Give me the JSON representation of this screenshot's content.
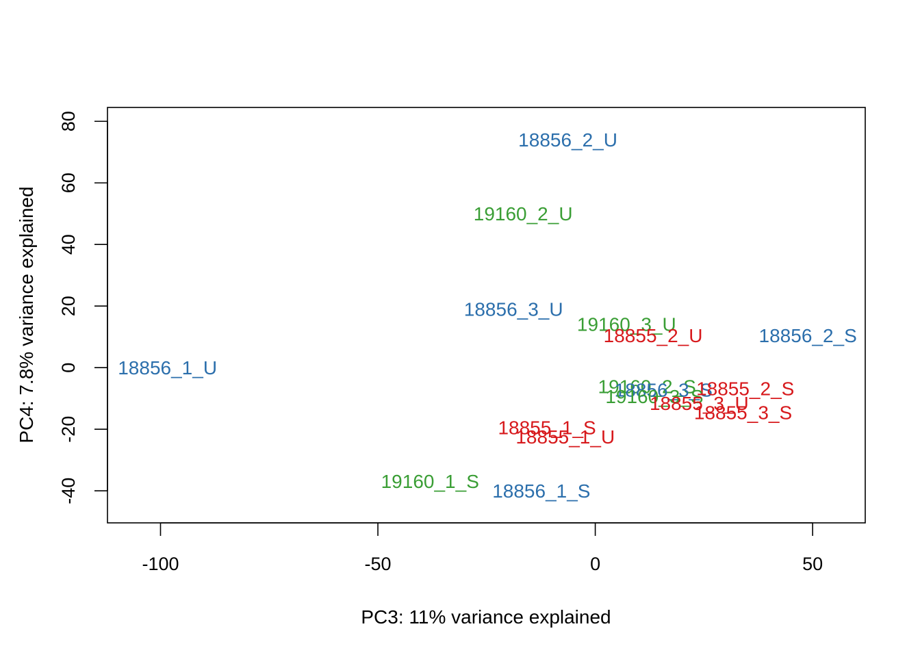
{
  "chart_data": {
    "type": "scatter",
    "title": "",
    "xlabel": "PC3: 11% variance explained",
    "ylabel": "PC4: 7.8% variance explained",
    "xlim": [
      -112.2,
      62.1
    ],
    "ylim": [
      -50.4,
      84.5
    ],
    "xticks": [
      -100,
      -50,
      0,
      50
    ],
    "yticks": [
      -40,
      -20,
      0,
      20,
      40,
      60,
      80
    ],
    "grid": false,
    "legend": "none",
    "colors": {
      "18855": "#d7191c",
      "18856": "#2c6fac",
      "19160": "#3a9e35"
    },
    "points": [
      {
        "label": "18856_2_U",
        "x": -6.3,
        "y": 74.1,
        "group": "18856"
      },
      {
        "label": "19160_2_U",
        "x": -16.6,
        "y": 50.0,
        "group": "19160"
      },
      {
        "label": "18856_3_U",
        "x": -18.8,
        "y": 19.0,
        "group": "18856"
      },
      {
        "label": "19160_3_U",
        "x": 7.2,
        "y": 14.2,
        "group": "19160"
      },
      {
        "label": "18855_2_U",
        "x": 13.3,
        "y": 10.5,
        "group": "18855"
      },
      {
        "label": "18856_2_S",
        "x": 48.9,
        "y": 10.5,
        "group": "18856"
      },
      {
        "label": "18856_1_U",
        "x": -98.4,
        "y": 0.0,
        "group": "18856"
      },
      {
        "label": "19160_2_S",
        "x": 11.9,
        "y": -6.1,
        "group": "19160"
      },
      {
        "label": "18856_3_S",
        "x": 15.7,
        "y": -7.2,
        "group": "18856"
      },
      {
        "label": "18855_2_S",
        "x": 34.5,
        "y": -6.7,
        "group": "18855"
      },
      {
        "label": "19160_3_S",
        "x": 13.6,
        "y": -9.3,
        "group": "19160"
      },
      {
        "label": "18855_3_U",
        "x": 23.9,
        "y": -11.5,
        "group": "18855"
      },
      {
        "label": "18855_3_S",
        "x": 34.0,
        "y": -14.5,
        "group": "18855"
      },
      {
        "label": "18855_1_S",
        "x": -11.1,
        "y": -19.4,
        "group": "18855"
      },
      {
        "label": "18855_1_U",
        "x": -6.9,
        "y": -22.4,
        "group": "18855"
      },
      {
        "label": "19160_1_S",
        "x": -38.0,
        "y": -36.8,
        "group": "19160"
      },
      {
        "label": "18856_1_S",
        "x": -12.4,
        "y": -39.9,
        "group": "18856"
      }
    ]
  }
}
